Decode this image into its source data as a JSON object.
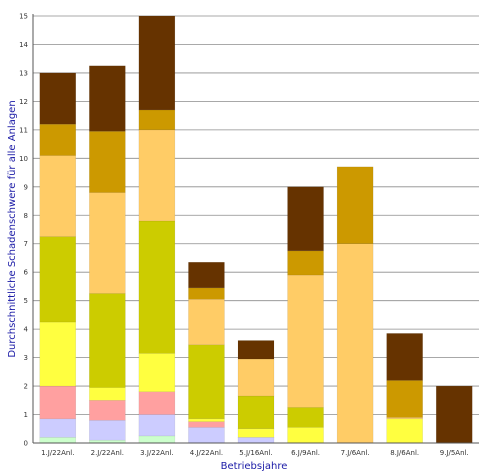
{
  "chart_data": {
    "type": "bar",
    "stacked": true,
    "xlabel": "Betriebsjahre",
    "ylabel": "Durchschnittliche Schadenschwere für alle Anlagen",
    "ylim": [
      0,
      15
    ],
    "yticks": [
      "0",
      "1",
      "2",
      "3",
      "4",
      "5",
      "6",
      "7",
      "8",
      "9",
      "10",
      "11",
      "12",
      "13",
      "14",
      "15"
    ],
    "grid": true,
    "categories": [
      "1.J/22Anl.",
      "2.J/22Anl.",
      "3.J/22Anl.",
      "4.J/22Anl.",
      "5.J/16Anl.",
      "6.J/9Anl.",
      "7.J/6Anl.",
      "8.J/6Anl.",
      "9.J/5Anl."
    ],
    "series": [
      {
        "color": "#ccffcc",
        "values": [
          0.2,
          0.1,
          0.25,
          0,
          0,
          0,
          0,
          0,
          0
        ]
      },
      {
        "color": "#ccccff",
        "values": [
          0.65,
          0.7,
          0.75,
          0.55,
          0.2,
          0,
          0,
          0,
          0
        ]
      },
      {
        "color": "#ffa0a0",
        "values": [
          1.15,
          0.7,
          0.8,
          0.2,
          0,
          0,
          0,
          0,
          0
        ]
      },
      {
        "color": "#ffff40",
        "values": [
          2.25,
          0.45,
          1.35,
          0.1,
          0.3,
          0.55,
          0,
          0.85,
          0
        ]
      },
      {
        "color": "#cccc00",
        "values": [
          3.0,
          3.3,
          4.65,
          2.6,
          1.15,
          0.7,
          0,
          0,
          0
        ]
      },
      {
        "color": "#ffcc66",
        "values": [
          2.85,
          3.55,
          3.2,
          1.6,
          1.3,
          4.65,
          7.0,
          0.05,
          0
        ]
      },
      {
        "color": "#cc9900",
        "values": [
          1.1,
          2.15,
          0.7,
          0.4,
          0,
          0.85,
          2.7,
          1.3,
          0
        ]
      },
      {
        "color": "#663300",
        "values": [
          1.8,
          2.3,
          3.3,
          0.9,
          0.65,
          2.25,
          0,
          1.65,
          2.0
        ]
      }
    ]
  }
}
